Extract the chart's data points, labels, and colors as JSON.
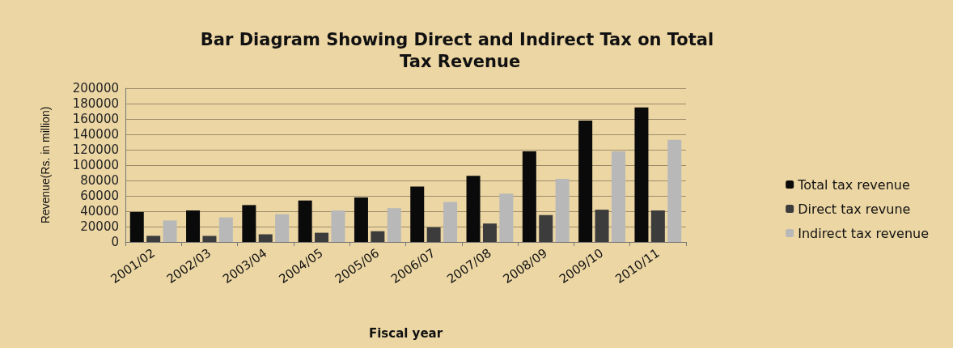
{
  "chart_data": {
    "type": "bar",
    "title": "Bar Diagram Showing Direct and Indirect Tax on Total Tax Revenue",
    "xlabel": "Fiscal year",
    "ylabel": "Revenue(Rs. in million)",
    "categories": [
      "2001/02",
      "2002/03",
      "2003/04",
      "2004/05",
      "2005/06",
      "2006/07",
      "2007/08",
      "2008/09",
      "2009/10",
      "2010/11"
    ],
    "series": [
      {
        "name": "Total tax revenue",
        "color": "#0a0a0a",
        "values": [
          39000,
          41000,
          48000,
          54000,
          58000,
          72000,
          86000,
          118000,
          158000,
          175000
        ]
      },
      {
        "name": "Direct tax revune",
        "color": "#3c3c3c",
        "values": [
          8000,
          8000,
          10000,
          12000,
          14000,
          19000,
          24000,
          35000,
          42000,
          41000
        ]
      },
      {
        "name": "Indirect tax revenue",
        "color": "#b8b8b8",
        "values": [
          28000,
          32000,
          36000,
          41000,
          44000,
          52000,
          63000,
          82000,
          118000,
          133000
        ]
      }
    ],
    "ylim": [
      0,
      200000
    ],
    "yticks": [
      0,
      20000,
      40000,
      60000,
      80000,
      100000,
      120000,
      140000,
      160000,
      180000,
      200000
    ],
    "grid": "y",
    "legend": "right"
  }
}
